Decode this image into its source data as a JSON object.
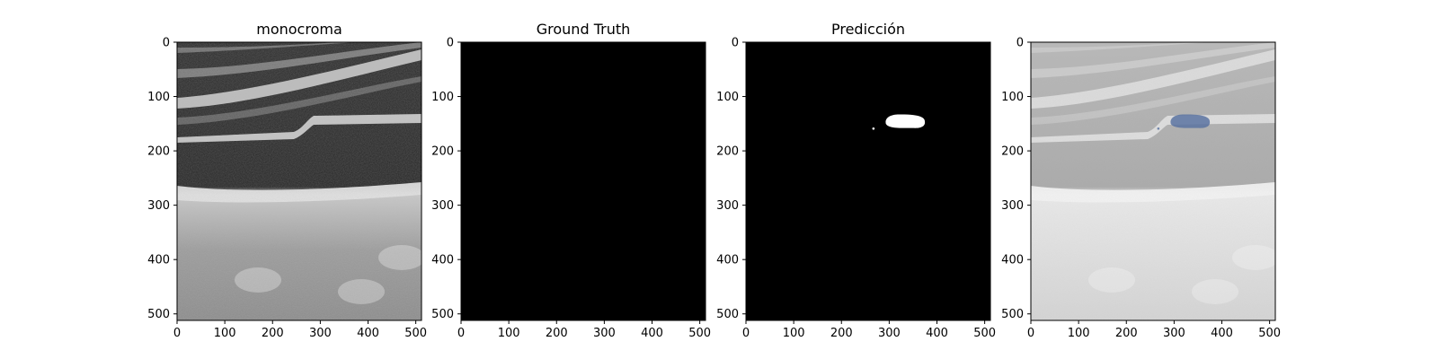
{
  "figure": {
    "panels": [
      {
        "id": "monochrome",
        "title": "monocroma",
        "content": "ultrasound",
        "xticks": [
          "0",
          "100",
          "200",
          "300",
          "400",
          "500"
        ],
        "yticks": [
          "0",
          "100",
          "200",
          "300",
          "400",
          "500"
        ]
      },
      {
        "id": "ground-truth",
        "title": "Ground Truth",
        "content": "black-mask",
        "xticks": [
          "0",
          "100",
          "200",
          "300",
          "400",
          "500"
        ],
        "yticks": [
          "0",
          "100",
          "200",
          "300",
          "400",
          "500"
        ]
      },
      {
        "id": "prediction",
        "title": "Predicción",
        "content": "prediction-mask",
        "xticks": [
          "0",
          "100",
          "200",
          "300",
          "400",
          "500"
        ],
        "yticks": [
          "0",
          "100",
          "200",
          "300",
          "400",
          "500"
        ]
      },
      {
        "id": "overlay",
        "title": "",
        "content": "overlay",
        "xticks": [
          "0",
          "100",
          "200",
          "300",
          "400",
          "500"
        ],
        "yticks": [
          "0",
          "100",
          "200",
          "300",
          "400",
          "500"
        ]
      }
    ],
    "image_extent": {
      "x": [
        0,
        512
      ],
      "y": [
        0,
        512
      ]
    },
    "colors": {
      "mask_foreground": "#ffffff",
      "mask_background": "#000000",
      "overlay_region": "#5b73a1"
    }
  }
}
